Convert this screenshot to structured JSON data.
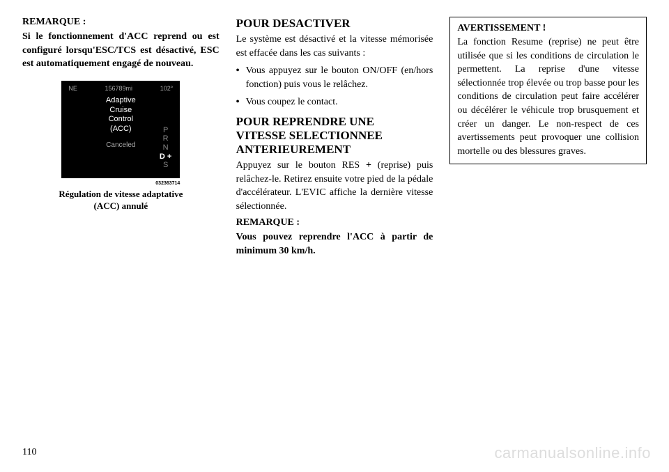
{
  "page_number": "110",
  "watermark": "carmanualsonline.info",
  "col1": {
    "remarque_label": "REMARQUE :",
    "remarque_text": "Si le fonctionnement d'ACC re­prend ou est configuré lorsqu'ESC/TCS est désactivé, ESC est automatiquement engagé de nouveau.",
    "display": {
      "compass": "NE",
      "odometer": "156789mi",
      "temp": "102°",
      "line1": "Adaptive",
      "line2": "Cruise",
      "line3": "Control",
      "line4": "(ACC)",
      "cancelled": "Canceled",
      "gears": [
        "P",
        "R",
        "N",
        "D +",
        "S"
      ],
      "selected_gear_index": 3
    },
    "figure_id": "032363714",
    "caption_line1": "Régulation de vitesse adaptative",
    "caption_line2": "(ACC) annulé"
  },
  "col2": {
    "heading1": "POUR DESACTIVER",
    "para1": "Le système est désactivé et la vitesse mémorisée est effacée dans les cas sui­vants :",
    "bullet1": "Vous appuyez sur le bouton ON/OFF (en/hors fonction) puis vous le relâchez.",
    "bullet2": "Vous coupez le contact.",
    "heading2_line1": "POUR REPRENDRE UNE",
    "heading2_line2": "VITESSE SELECTIONNEE",
    "heading2_line3": "ANTERIEUREMENT",
    "para2_prefix": "Appuyez sur le bouton RES ",
    "para2_bold": "+",
    "para2_suffix": " (re­prise) puis relâchez-le. Retirez ensuite votre pied de la pédale d'accélérateur. L'EVIC affiche la dernière vitesse sé­lectionnée.",
    "remarque_label": "REMARQUE :",
    "remarque_text": "Vous pouvez reprendre l'ACC à partir de minimum 30 km/h."
  },
  "col3": {
    "warning_title": "AVERTISSEMENT !",
    "warning_text": "La fonction Resume (reprise) ne peut être utilisée que si les condi­tions de circulation le permettent. La reprise d'une vitesse sélectionnée trop élevée ou trop basse pour les conditions de circulation peut faire accélérer ou décélérer le véhicule trop brusquement et créer un dan­ger. Le non-respect de ces avertisse­ments peut provoquer une collision mortelle ou des blessures graves."
  }
}
